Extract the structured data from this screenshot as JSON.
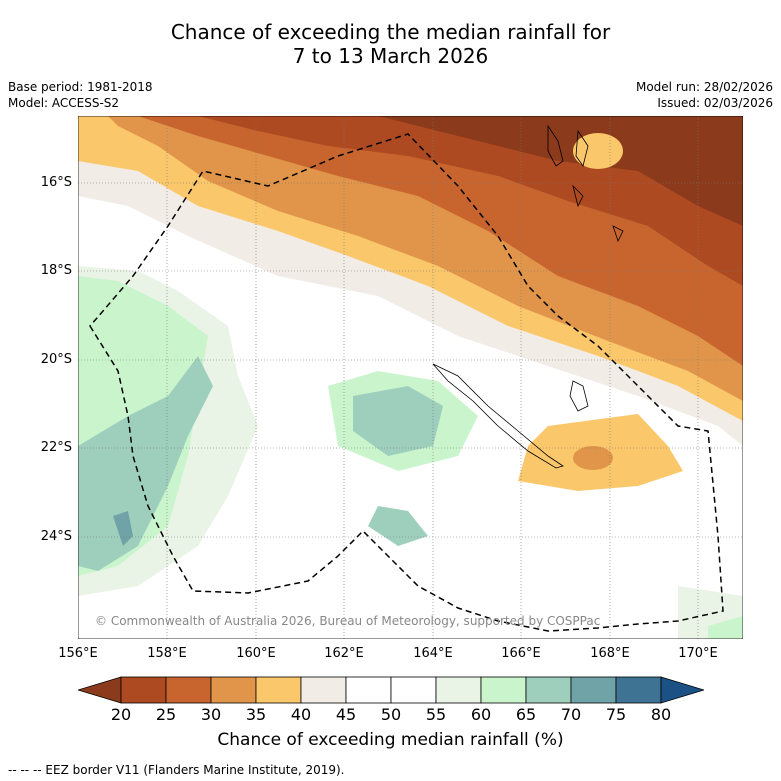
{
  "title_line1": "Chance of exceeding the median rainfall for",
  "title_line2": "7 to 13 March 2026",
  "base_period": "Base period: 1981-2018",
  "model": "Model: ACCESS-S2",
  "model_run": "Model run: 28/02/2026",
  "issued": "Issued: 02/03/2026",
  "lat_labels": [
    "16°S",
    "18°S",
    "20°S",
    "22°S",
    "24°S"
  ],
  "lon_labels": [
    "156°E",
    "158°E",
    "160°E",
    "162°E",
    "164°E",
    "166°E",
    "168°E",
    "170°E"
  ],
  "copyright": "© Commonwealth of Australia 2026, Bureau of Meteorology, supported by COSPPac",
  "colorbar": {
    "ticks": [
      "20",
      "25",
      "30",
      "35",
      "40",
      "45",
      "50",
      "55",
      "60",
      "65",
      "70",
      "75",
      "80"
    ],
    "colors": [
      "#8b3a1c",
      "#ae4a22",
      "#c8652f",
      "#e0954a",
      "#fbc76b",
      "#f2ece6",
      "#ffffff",
      "#ffffff",
      "#e9f4e6",
      "#caf5cc",
      "#9ecfbd",
      "#6fa3a8",
      "#3e7394",
      "#1b5184"
    ],
    "label": "Chance of exceeding median rainfall (%)"
  },
  "legend": "--  --  -- EEZ border V11 (Flanders Marine Institute, 2019)."
}
